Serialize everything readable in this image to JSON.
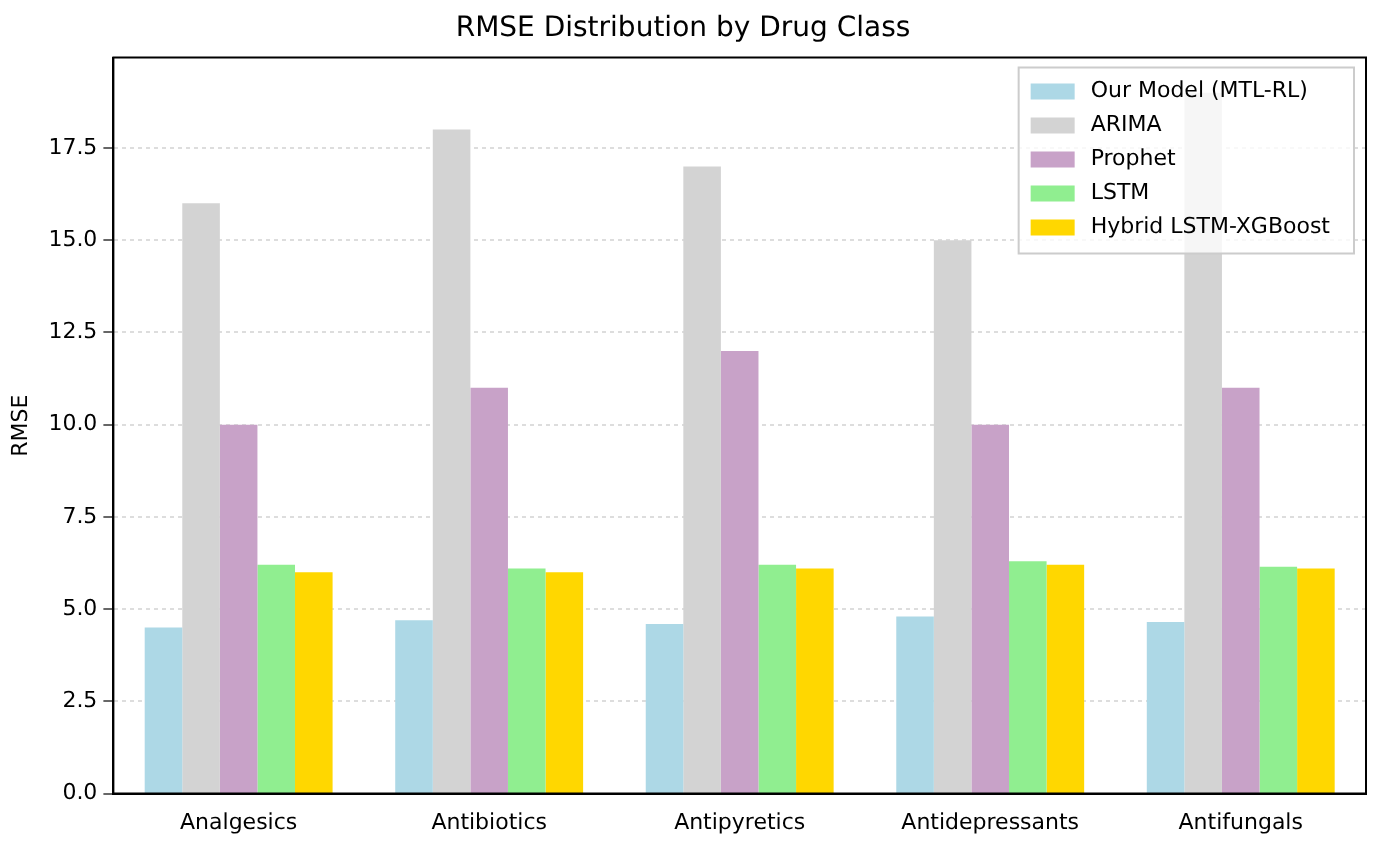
{
  "chart_data": {
    "type": "bar",
    "title": "RMSE Distribution by Drug Class",
    "ylabel": "RMSE",
    "categories": [
      "Analgesics",
      "Antibiotics",
      "Antipyretics",
      "Antidepressants",
      "Antifungals"
    ],
    "series": [
      {
        "name": "Our Model (MTL-RL)",
        "color": "#add8e6",
        "values": [
          4.5,
          4.7,
          4.6,
          4.8,
          4.65
        ]
      },
      {
        "name": "ARIMA",
        "color": "#d3d3d3",
        "values": [
          16,
          18,
          17,
          15,
          19
        ]
      },
      {
        "name": "Prophet",
        "color": "#c8a2c8",
        "values": [
          10,
          11,
          12,
          10,
          11
        ]
      },
      {
        "name": "LSTM",
        "color": "#90ee90",
        "values": [
          6.2,
          6.1,
          6.2,
          6.3,
          6.15
        ]
      },
      {
        "name": "Hybrid LSTM-XGBoost",
        "color": "#ffd700",
        "values": [
          6.0,
          6.0,
          6.1,
          6.2,
          6.1
        ]
      }
    ],
    "ylim": [
      0,
      19.95
    ],
    "yticks": [
      {
        "value": 0,
        "label": "0.0"
      },
      2.5,
      {
        "value": 5,
        "label": "5.0"
      },
      7.5,
      {
        "value": 10,
        "label": "10.0"
      },
      12.5,
      {
        "value": 15,
        "label": "15.0"
      },
      17.5
    ],
    "grid": "y",
    "legend": "top right"
  }
}
